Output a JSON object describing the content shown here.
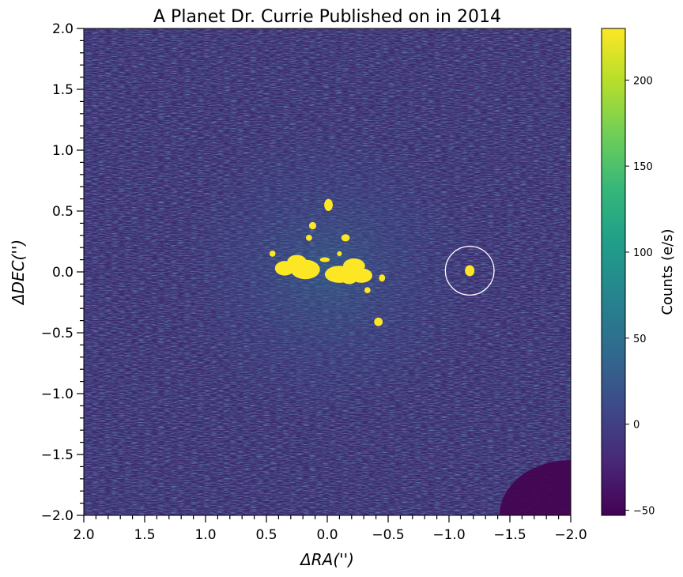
{
  "chart_data": {
    "type": "heatmap",
    "title": "A Planet Dr. Currie Published on in 2014",
    "xlabel": "ΔRA('')",
    "ylabel": "ΔDEC('')",
    "xlim": [
      2.0,
      -2.0
    ],
    "ylim": [
      -2.0,
      2.0
    ],
    "x_ticks": [
      2.0,
      1.5,
      1.0,
      0.5,
      0.0,
      -0.5,
      -1.0,
      -1.5,
      -2.0
    ],
    "x_tick_labels": [
      "2.0",
      "1.5",
      "1.0",
      "0.5",
      "0.0",
      "−0.5",
      "−1.0",
      "−1.5",
      "−2.0"
    ],
    "y_ticks": [
      2.0,
      1.5,
      1.0,
      0.5,
      0.0,
      -0.5,
      -1.0,
      -1.5,
      -2.0
    ],
    "y_tick_labels": [
      "2.0",
      "1.5",
      "1.0",
      "0.5",
      "0.0",
      "−0.5",
      "−1.0",
      "−1.5",
      "−2.0"
    ],
    "colorbar": {
      "label": "Counts (e/s)",
      "range": [
        -53,
        230
      ],
      "ticks": [
        -50,
        0,
        50,
        100,
        150,
        200
      ],
      "tick_labels": [
        "−50",
        "0",
        "50",
        "100",
        "150",
        "200"
      ],
      "colormap": [
        "#440154",
        "#482878",
        "#3e4989",
        "#31688e",
        "#26828e",
        "#1f9e89",
        "#35b779",
        "#6ece58",
        "#b5de2b",
        "#fde725"
      ]
    },
    "background_color": "#3c2a6e",
    "saturated_color": "#fde725",
    "star_residuals": [
      {
        "x": 0.25,
        "y": 0.08,
        "rx": 0.08,
        "ry": 0.06
      },
      {
        "x": 0.18,
        "y": 0.02,
        "rx": 0.12,
        "ry": 0.08
      },
      {
        "x": 0.35,
        "y": 0.03,
        "rx": 0.08,
        "ry": 0.06
      },
      {
        "x": -0.1,
        "y": -0.02,
        "rx": 0.12,
        "ry": 0.07
      },
      {
        "x": -0.22,
        "y": 0.05,
        "rx": 0.09,
        "ry": 0.06
      },
      {
        "x": -0.28,
        "y": -0.03,
        "rx": 0.09,
        "ry": 0.06
      },
      {
        "x": -0.18,
        "y": -0.06,
        "rx": 0.06,
        "ry": 0.04
      },
      {
        "x": -0.01,
        "y": 0.55,
        "rx": 0.035,
        "ry": 0.05
      },
      {
        "x": 0.12,
        "y": 0.38,
        "rx": 0.03,
        "ry": 0.03
      },
      {
        "x": 0.15,
        "y": 0.28,
        "rx": 0.025,
        "ry": 0.025
      },
      {
        "x": -0.15,
        "y": 0.28,
        "rx": 0.035,
        "ry": 0.03
      },
      {
        "x": -0.42,
        "y": -0.41,
        "rx": 0.035,
        "ry": 0.035
      },
      {
        "x": -0.33,
        "y": -0.15,
        "rx": 0.025,
        "ry": 0.025
      },
      {
        "x": -0.45,
        "y": -0.05,
        "rx": 0.025,
        "ry": 0.03
      },
      {
        "x": 0.45,
        "y": 0.15,
        "rx": 0.025,
        "ry": 0.025
      },
      {
        "x": -0.1,
        "y": 0.15,
        "rx": 0.02,
        "ry": 0.02
      },
      {
        "x": 0.02,
        "y": 0.1,
        "rx": 0.04,
        "ry": 0.02
      }
    ],
    "planet": {
      "x": -1.17,
      "y": 0.01,
      "circle_radius": 0.2
    }
  }
}
